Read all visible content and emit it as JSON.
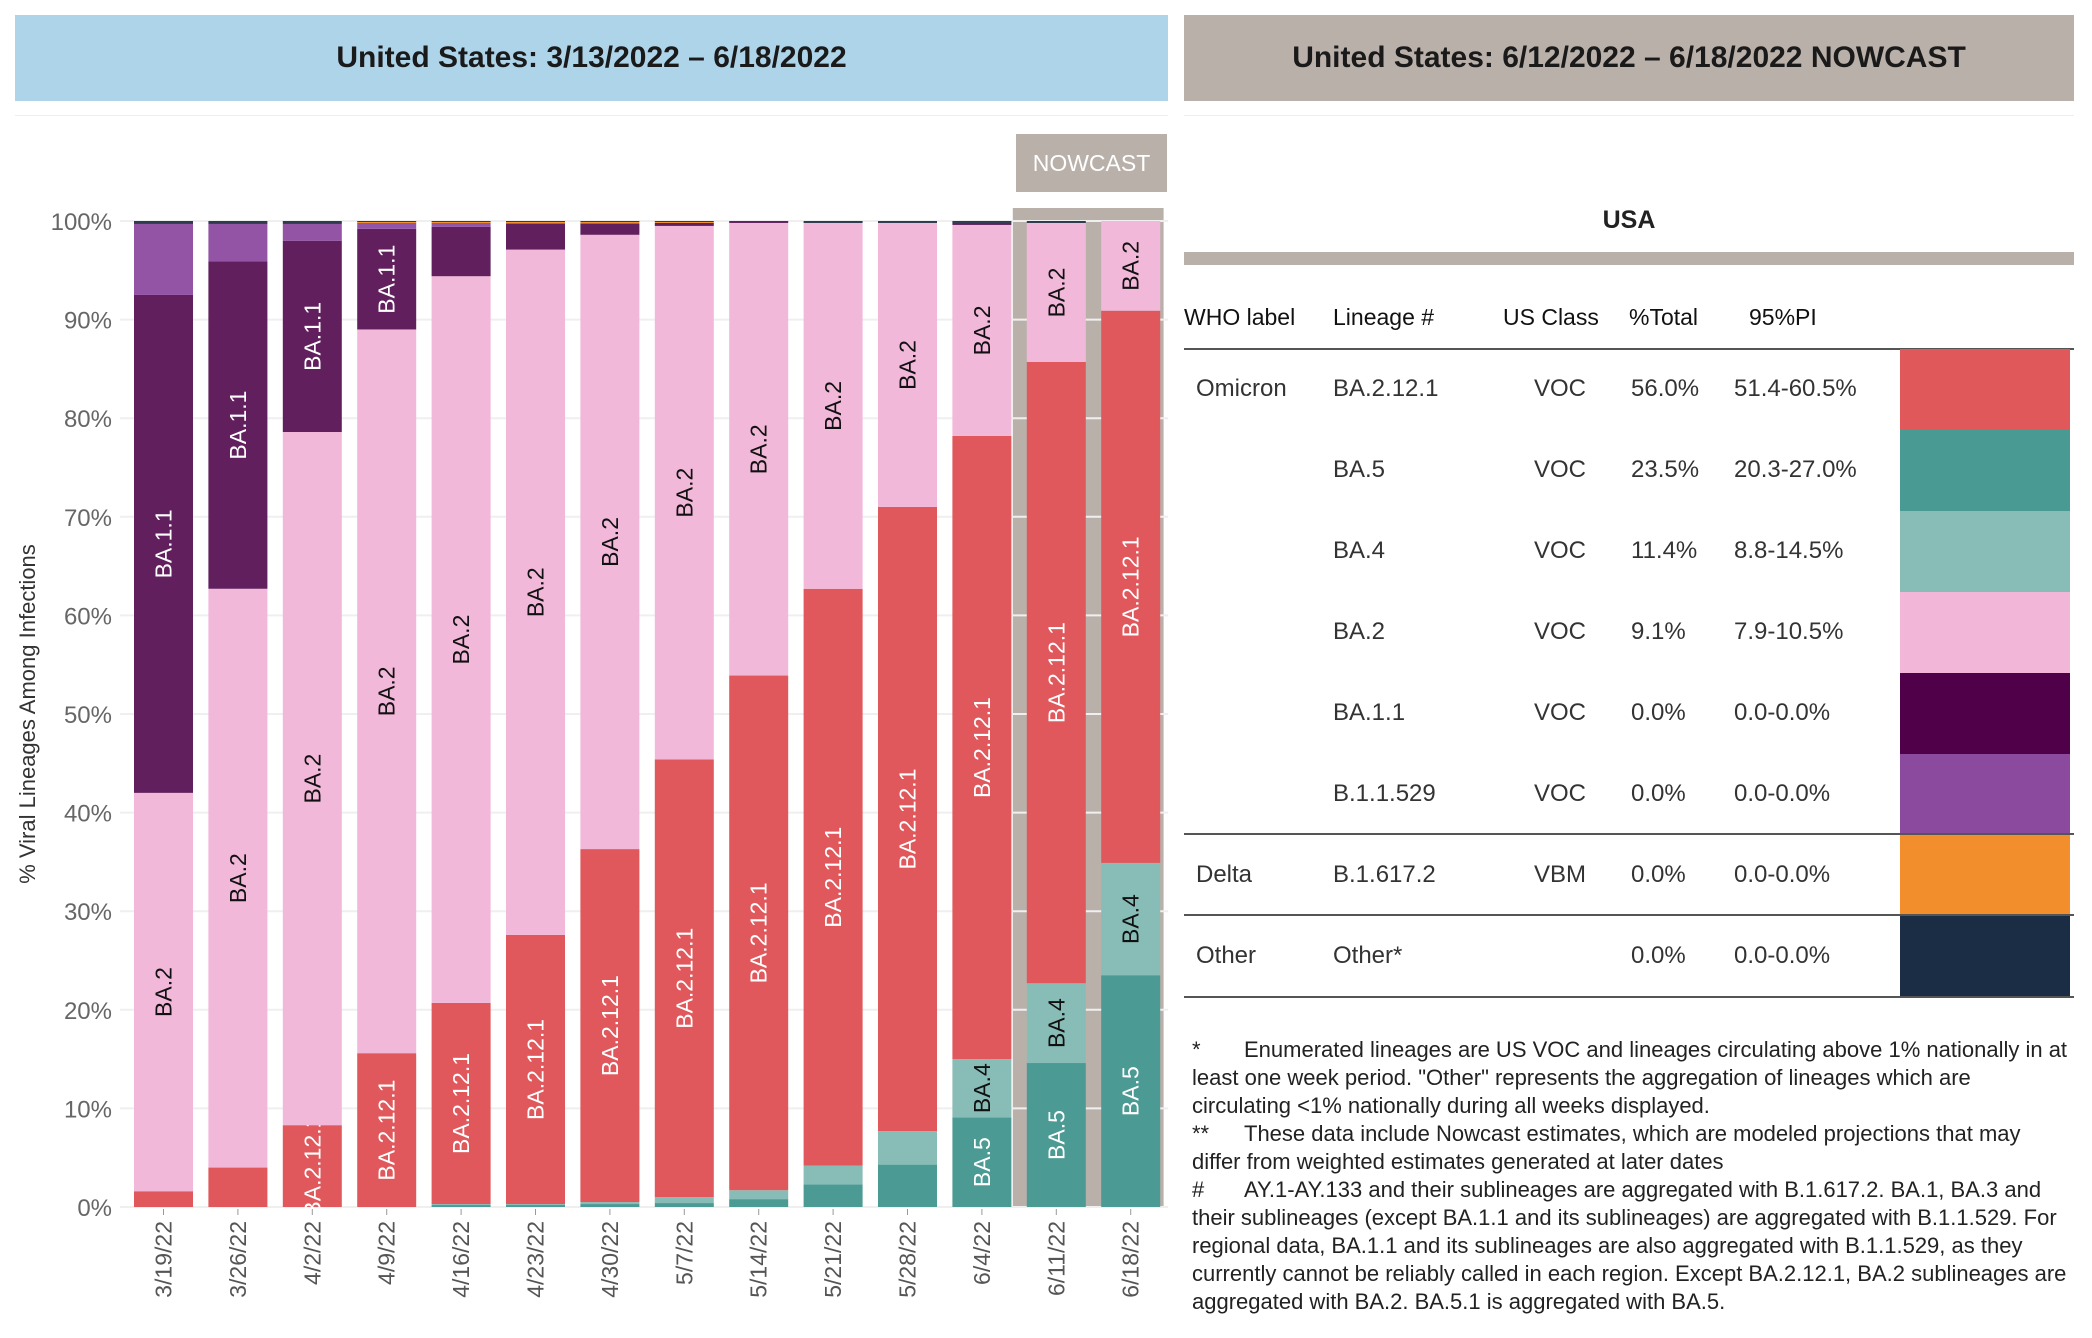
{
  "headers": {
    "left": "United States: 3/13/2022 – 6/18/2022",
    "right": "United States: 6/12/2022 – 6/18/2022 NOWCAST"
  },
  "nowcast_badge": "NOWCAST",
  "chart_data": {
    "type": "bar",
    "stacked": true,
    "ylabel": "% Viral Lineages Among Infections",
    "ylim": [
      0,
      100
    ],
    "yticks": [
      "0%",
      "10%",
      "20%",
      "30%",
      "40%",
      "50%",
      "60%",
      "70%",
      "80%",
      "90%",
      "100%"
    ],
    "categories": [
      "3/19/22",
      "3/26/22",
      "4/2/22",
      "4/9/22",
      "4/16/22",
      "4/23/22",
      "4/30/22",
      "5/7/22",
      "5/14/22",
      "5/21/22",
      "5/28/22",
      "6/4/22",
      "6/11/22",
      "6/18/22"
    ],
    "nowcast_categories": [
      "6/11/22",
      "6/18/22"
    ],
    "series": [
      {
        "name": "BA.5",
        "color": "#4b9a94",
        "values": [
          0,
          0,
          0,
          0,
          0.2,
          0.2,
          0.3,
          0.4,
          0.8,
          2.3,
          4.3,
          9.1,
          14.6,
          23.5
        ]
      },
      {
        "name": "BA.4",
        "color": "#88bcb6",
        "values": [
          0,
          0,
          0,
          0,
          0.1,
          0.1,
          0.2,
          0.6,
          0.9,
          1.9,
          3.4,
          5.9,
          8.1,
          11.4
        ]
      },
      {
        "name": "BA.2.12.1",
        "color": "#e0585b",
        "values": [
          1.6,
          4.0,
          8.3,
          15.6,
          20.4,
          27.3,
          35.8,
          44.4,
          52.2,
          58.5,
          63.3,
          63.2,
          63.0,
          56.0
        ]
      },
      {
        "name": "BA.2",
        "color": "#f2b8d9",
        "values": [
          40.4,
          58.7,
          70.3,
          73.4,
          73.7,
          69.5,
          62.3,
          54.1,
          45.9,
          37.1,
          28.8,
          21.4,
          14.1,
          9.1
        ]
      },
      {
        "name": "BA.1.1",
        "color": "#621f5e",
        "values": [
          50.5,
          33.2,
          19.4,
          10.2,
          5.0,
          2.6,
          1.1,
          0.3,
          0.1,
          0,
          0,
          0.2,
          0,
          0
        ]
      },
      {
        "name": "B.1.1.529",
        "color": "#9454a6",
        "values": [
          7.2,
          3.8,
          1.7,
          0.6,
          0.4,
          0.1,
          0.1,
          0,
          0,
          0,
          0,
          0,
          0,
          0
        ]
      },
      {
        "name": "B.1.617.2",
        "color": "#f28e2b",
        "values": [
          0,
          0,
          0,
          0.1,
          0.1,
          0.1,
          0.1,
          0.1,
          0,
          0,
          0,
          0,
          0,
          0
        ]
      },
      {
        "name": "Other",
        "color": "#2e3a4d",
        "values": [
          0.3,
          0.3,
          0.3,
          0.1,
          0.1,
          0.1,
          0.1,
          0.1,
          0.1,
          0.2,
          0.2,
          0.2,
          0.2,
          0
        ]
      }
    ]
  },
  "table": {
    "title": "USA",
    "columns": [
      "WHO label",
      "Lineage #",
      "US Class",
      "%Total",
      "95%PI"
    ],
    "rows": [
      {
        "who": "Omicron",
        "lineage": "BA.2.12.1",
        "class": "VOC",
        "total": "56.0%",
        "pi": "51.4-60.5%",
        "color": "#e1585b"
      },
      {
        "who": "",
        "lineage": "BA.5",
        "class": "VOC",
        "total": "23.5%",
        "pi": "20.3-27.0%",
        "color": "#4a9a94"
      },
      {
        "who": "",
        "lineage": "BA.4",
        "class": "VOC",
        "total": "11.4%",
        "pi": "8.8-14.5%",
        "color": "#88bcb6"
      },
      {
        "who": "",
        "lineage": "BA.2",
        "class": "VOC",
        "total": "9.1%",
        "pi": "7.9-10.5%",
        "color": "#f1b6d8"
      },
      {
        "who": "",
        "lineage": "BA.1.1",
        "class": "VOC",
        "total": "0.0%",
        "pi": "0.0-0.0%",
        "color": "#4f0048"
      },
      {
        "who": "",
        "lineage": "B.1.1.529",
        "class": "VOC",
        "total": "0.0%",
        "pi": "0.0-0.0%",
        "color": "#8b4a9e"
      },
      {
        "who": "Delta",
        "lineage": "B.1.617.2",
        "class": "VBM",
        "total": "0.0%",
        "pi": "0.0-0.0%",
        "color": "#f28e2b"
      },
      {
        "who": "Other",
        "lineage": "Other*",
        "class": "",
        "total": "0.0%",
        "pi": "0.0-0.0%",
        "color": "#1b2d45"
      }
    ]
  },
  "notes": [
    {
      "mark": "*",
      "text": "Enumerated lineages are US VOC and lineages circulating above 1% nationally in at least one week period. \"Other\" represents the aggregation of lineages which are circulating <1% nationally during all weeks displayed."
    },
    {
      "mark": "**",
      "text": "These data include Nowcast estimates, which are modeled projections that may differ from weighted estimates generated at later dates"
    },
    {
      "mark": "#",
      "text": "AY.1-AY.133 and their sublineages are aggregated with B.1.617.2. BA.1, BA.3 and their sublineages (except BA.1.1 and its sublineages) are aggregated with B.1.1.529. For regional data, BA.1.1 and its sublineages are also aggregated with B.1.1.529, as they currently cannot be reliably called in each region. Except BA.2.12.1, BA.2 sublineages are aggregated with BA.2. BA.5.1 is aggregated with BA.5."
    }
  ]
}
